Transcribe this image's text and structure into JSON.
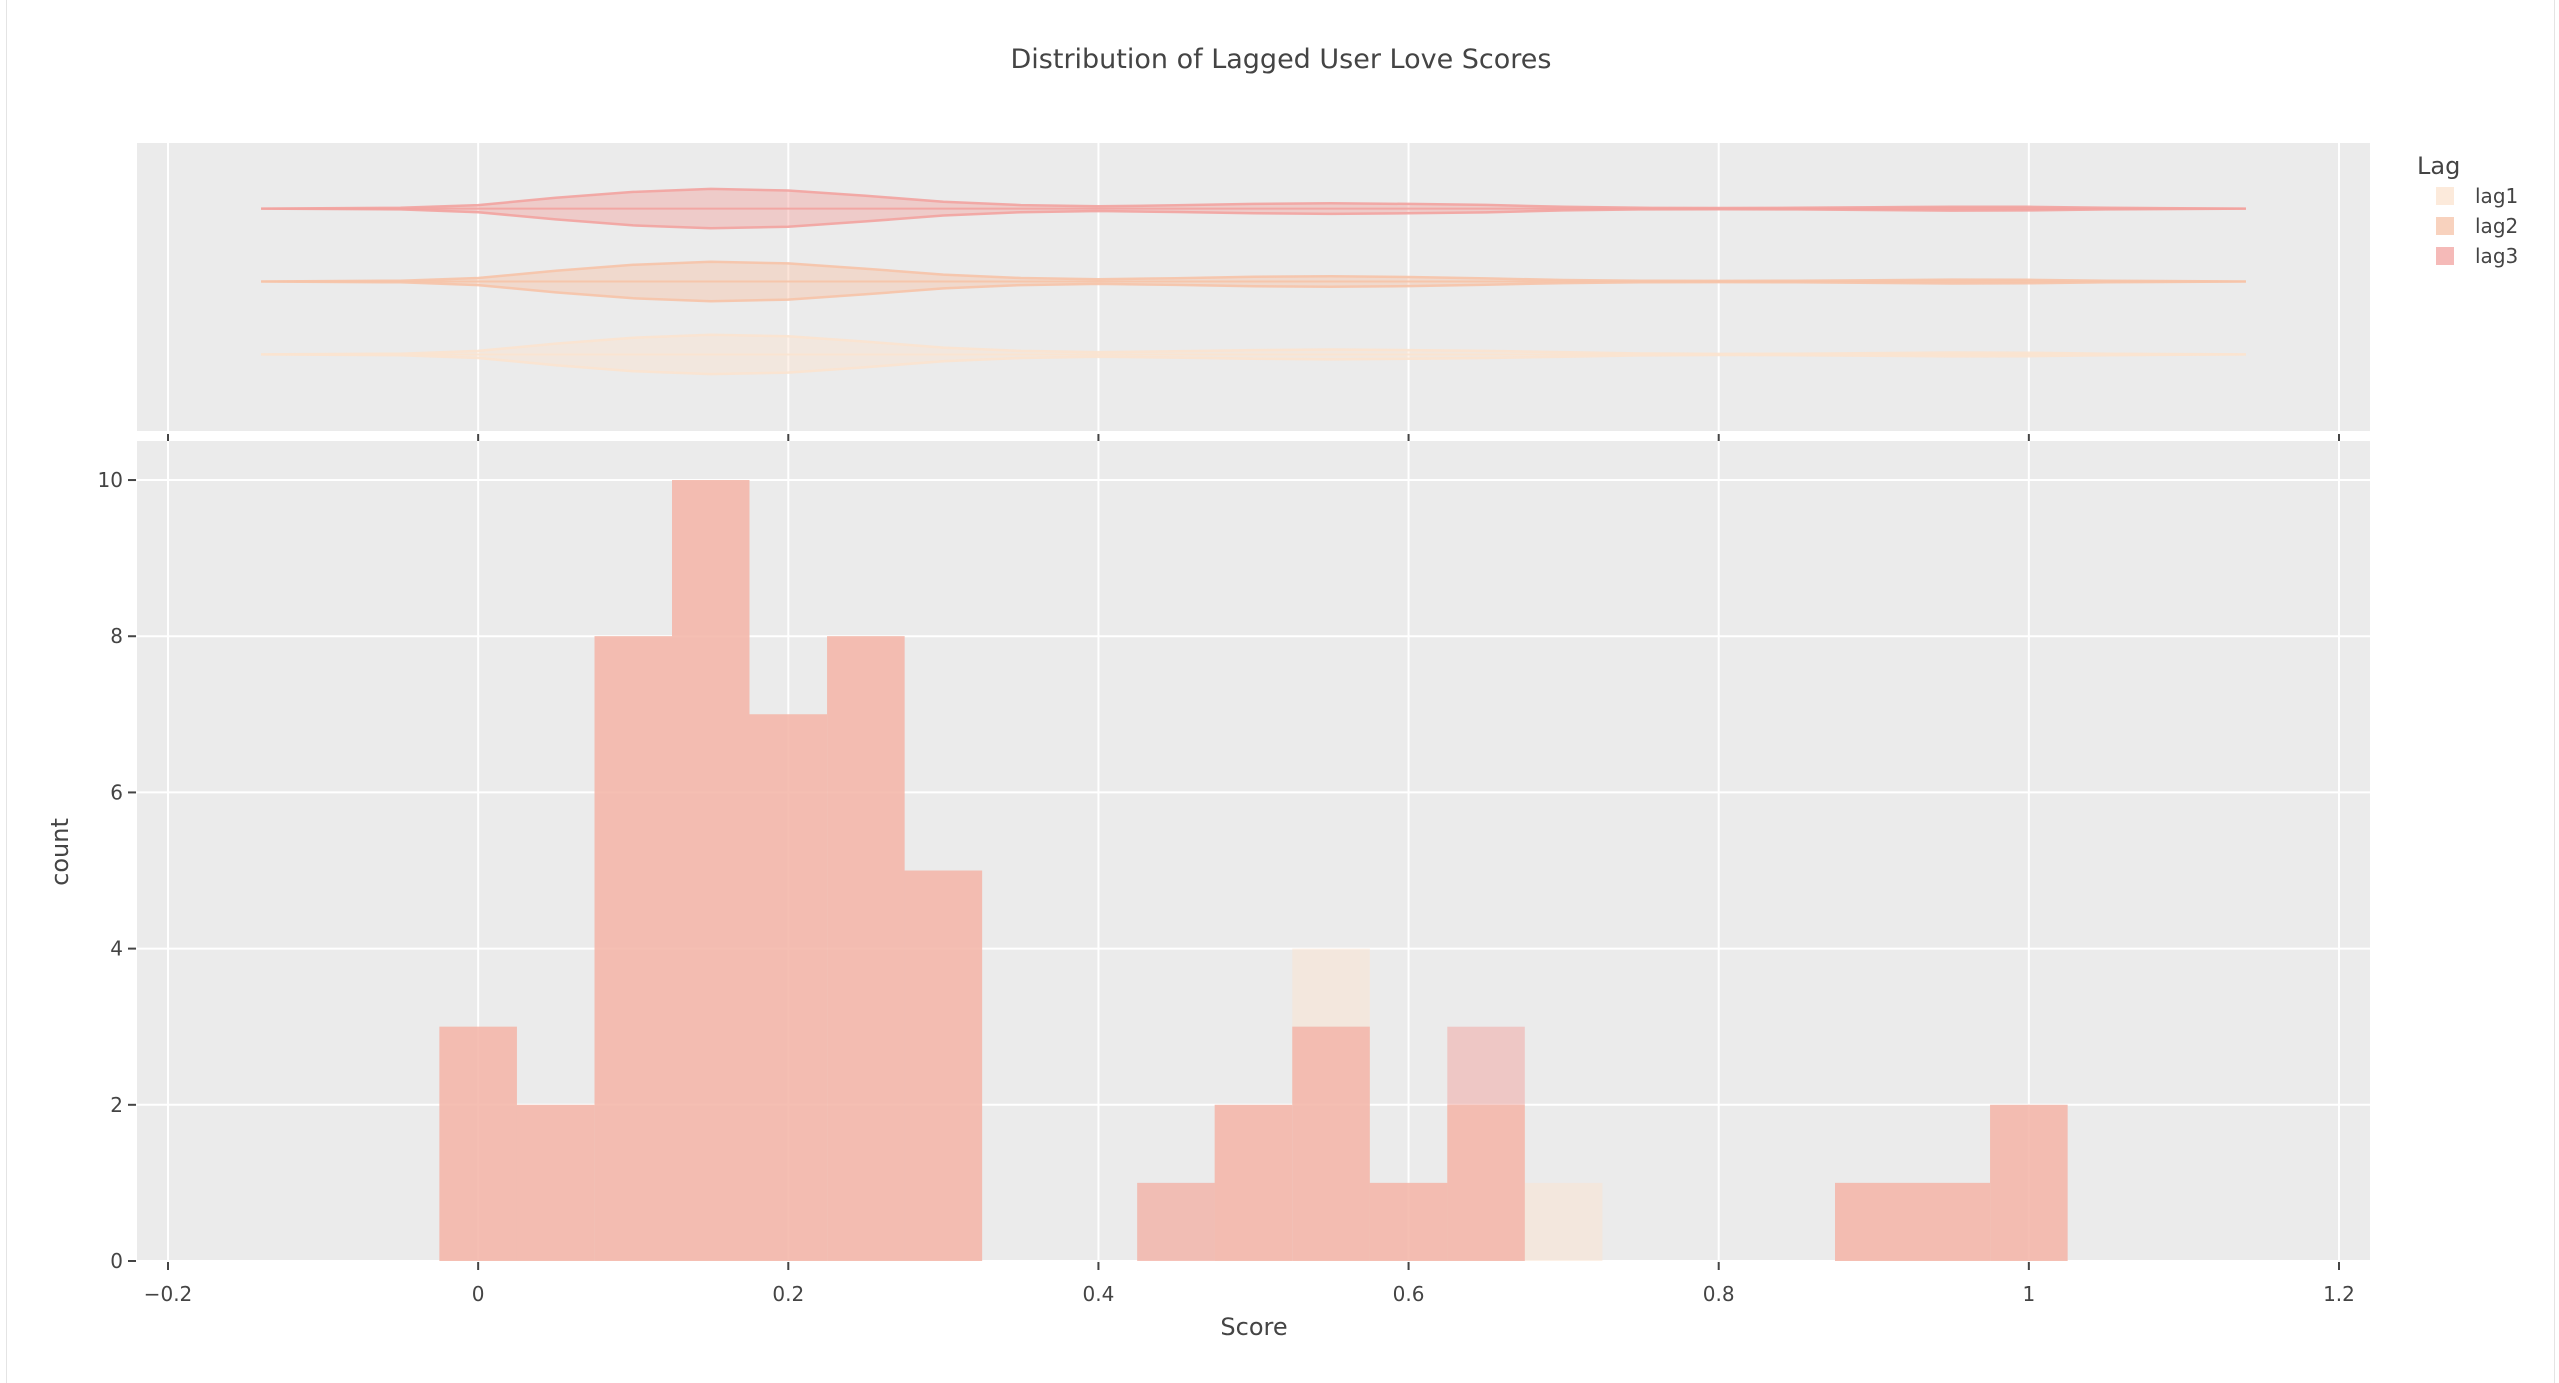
{
  "chart_data": {
    "type": "histogram",
    "title": "Distribution of Lagged User Love Scores",
    "xlabel": "Score",
    "ylabel": "count",
    "xlim": [
      -0.22,
      1.22
    ],
    "ylim": [
      0,
      10.5
    ],
    "bin_width": 0.05,
    "x_ticks": [
      -0.2,
      0,
      0.2,
      0.4,
      0.6,
      0.8,
      1,
      1.2
    ],
    "x_tick_labels": [
      "−0.2",
      "0",
      "0.2",
      "0.4",
      "0.6",
      "0.8",
      "1",
      "1.2"
    ],
    "y_ticks": [
      0,
      2,
      4,
      6,
      8,
      10
    ],
    "y_tick_labels": [
      "0",
      "2",
      "4",
      "6",
      "8",
      "10"
    ],
    "bin_centers": [
      0.0,
      0.05,
      0.1,
      0.15,
      0.2,
      0.25,
      0.3,
      0.35,
      0.4,
      0.45,
      0.5,
      0.55,
      0.6,
      0.65,
      0.7,
      0.75,
      0.8,
      0.85,
      0.9,
      0.95,
      1.0
    ],
    "series": [
      {
        "name": "lag1",
        "color": "#fbe3cf",
        "values": [
          3,
          2,
          8,
          10,
          7,
          8,
          5,
          0,
          0,
          0,
          2,
          4,
          1,
          2,
          1,
          0,
          0,
          0,
          1,
          1,
          2
        ]
      },
      {
        "name": "lag2",
        "color": "#f6c3a8",
        "values": [
          3,
          2,
          8,
          10,
          7,
          8,
          5,
          0,
          0,
          1,
          2,
          3,
          1,
          2,
          0,
          0,
          0,
          0,
          1,
          1,
          2
        ]
      },
      {
        "name": "lag3",
        "color": "#f2a3a0",
        "values": [
          3,
          2,
          8,
          10,
          7,
          8,
          5,
          0,
          0,
          1,
          2,
          3,
          1,
          3,
          0,
          0,
          0,
          0,
          1,
          1,
          2
        ]
      }
    ],
    "marginal": {
      "type": "violin",
      "series": [
        {
          "name": "lag1",
          "range": [
            -0.14,
            1.14
          ],
          "density": [
            [
              -0.14,
              0.0
            ],
            [
              -0.05,
              0.04
            ],
            [
              0.0,
              0.18
            ],
            [
              0.05,
              0.55
            ],
            [
              0.1,
              0.85
            ],
            [
              0.15,
              1.0
            ],
            [
              0.2,
              0.92
            ],
            [
              0.25,
              0.65
            ],
            [
              0.3,
              0.35
            ],
            [
              0.35,
              0.18
            ],
            [
              0.4,
              0.12
            ],
            [
              0.45,
              0.16
            ],
            [
              0.5,
              0.22
            ],
            [
              0.55,
              0.25
            ],
            [
              0.6,
              0.22
            ],
            [
              0.65,
              0.18
            ],
            [
              0.7,
              0.12
            ],
            [
              0.75,
              0.05
            ],
            [
              0.8,
              0.03
            ],
            [
              0.85,
              0.04
            ],
            [
              0.9,
              0.07
            ],
            [
              0.95,
              0.1
            ],
            [
              1.0,
              0.09
            ],
            [
              1.05,
              0.04
            ],
            [
              1.14,
              0.0
            ]
          ]
        },
        {
          "name": "lag2",
          "range": [
            -0.14,
            1.14
          ],
          "density": [
            [
              -0.14,
              0.0
            ],
            [
              -0.05,
              0.04
            ],
            [
              0.0,
              0.18
            ],
            [
              0.05,
              0.55
            ],
            [
              0.1,
              0.85
            ],
            [
              0.15,
              1.0
            ],
            [
              0.2,
              0.92
            ],
            [
              0.25,
              0.65
            ],
            [
              0.3,
              0.35
            ],
            [
              0.35,
              0.18
            ],
            [
              0.4,
              0.12
            ],
            [
              0.45,
              0.17
            ],
            [
              0.5,
              0.24
            ],
            [
              0.55,
              0.27
            ],
            [
              0.6,
              0.23
            ],
            [
              0.65,
              0.16
            ],
            [
              0.7,
              0.08
            ],
            [
              0.75,
              0.04
            ],
            [
              0.8,
              0.03
            ],
            [
              0.85,
              0.04
            ],
            [
              0.9,
              0.07
            ],
            [
              0.95,
              0.1
            ],
            [
              1.0,
              0.09
            ],
            [
              1.05,
              0.04
            ],
            [
              1.14,
              0.0
            ]
          ]
        },
        {
          "name": "lag3",
          "range": [
            -0.14,
            1.14
          ],
          "density": [
            [
              -0.14,
              0.0
            ],
            [
              -0.05,
              0.04
            ],
            [
              0.0,
              0.18
            ],
            [
              0.05,
              0.55
            ],
            [
              0.1,
              0.85
            ],
            [
              0.15,
              1.0
            ],
            [
              0.2,
              0.92
            ],
            [
              0.25,
              0.65
            ],
            [
              0.3,
              0.35
            ],
            [
              0.35,
              0.18
            ],
            [
              0.4,
              0.12
            ],
            [
              0.45,
              0.17
            ],
            [
              0.5,
              0.24
            ],
            [
              0.55,
              0.27
            ],
            [
              0.6,
              0.24
            ],
            [
              0.65,
              0.19
            ],
            [
              0.7,
              0.09
            ],
            [
              0.75,
              0.04
            ],
            [
              0.8,
              0.03
            ],
            [
              0.85,
              0.04
            ],
            [
              0.9,
              0.07
            ],
            [
              0.95,
              0.1
            ],
            [
              1.0,
              0.09
            ],
            [
              1.05,
              0.04
            ],
            [
              1.14,
              0.0
            ]
          ]
        }
      ]
    },
    "legend": {
      "title": "Lag",
      "position": "top-right",
      "entries": [
        "lag1",
        "lag2",
        "lag3"
      ]
    },
    "grid": true,
    "barmode": "overlay",
    "opacity": 0.5
  }
}
